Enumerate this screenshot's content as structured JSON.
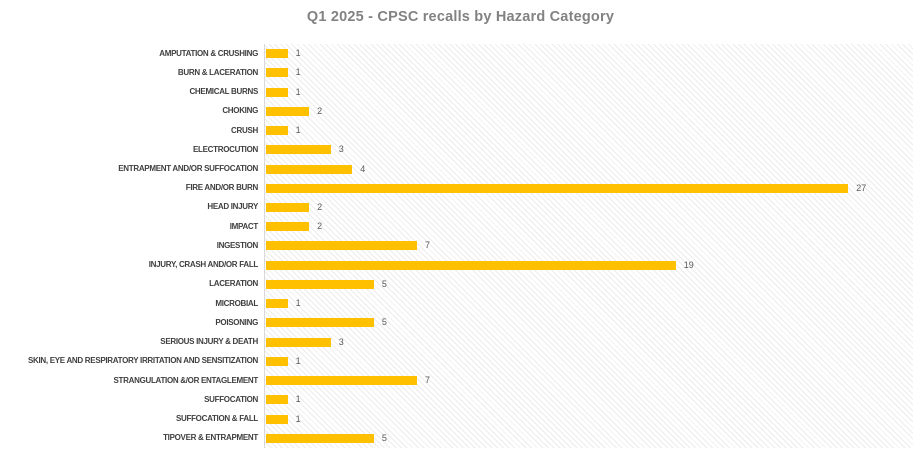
{
  "chart_data": {
    "type": "bar",
    "orientation": "horizontal",
    "title": "Q1 2025 - CPSC recalls by Hazard Category",
    "categories": [
      "AMPUTATION & CRUSHING",
      "BURN & LACERATION",
      "CHEMICAL BURNS",
      "CHOKING",
      "CRUSH",
      "ELECTROCUTION",
      "ENTRAPMENT AND/OR SUFFOCATION",
      "FIRE AND/OR BURN",
      "HEAD INJURY",
      "IMPACT",
      "INGESTION",
      "INJURY, CRASH AND/OR FALL",
      "LACERATION",
      "MICROBIAL",
      "POISONING",
      "SERIOUS INJURY & DEATH",
      "SKIN, EYE AND RESPIRATORY IRRITATION AND SENSITIZATION",
      "STRANGULATION &/OR ENTAGLEMENT",
      "SUFFOCATION",
      "SUFFOCATION & FALL",
      "TIPOVER & ENTRAPMENT"
    ],
    "values": [
      1,
      1,
      1,
      2,
      1,
      3,
      4,
      27,
      2,
      2,
      7,
      19,
      5,
      1,
      5,
      3,
      1,
      7,
      1,
      1,
      5
    ],
    "xlabel": "",
    "ylabel": "",
    "xlim": [
      0,
      30
    ],
    "data_labels": true,
    "gridlines": false,
    "legend": "none",
    "bar_color": "#FFC000",
    "title_color": "#828282",
    "category_label_color": "#404040",
    "value_label_color": "#595959",
    "axis_line_color": "#d9d9d9",
    "plot_area_pattern": "light-diagonal-hatch"
  }
}
